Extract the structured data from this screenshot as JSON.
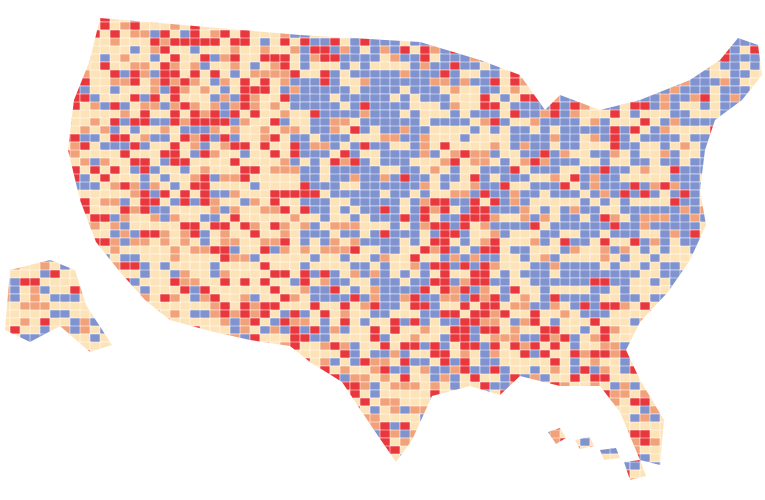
{
  "map": {
    "colors": [
      "#e8383d",
      "#f2a27a",
      "#fde3b8",
      "#8093cf"
    ],
    "background": "#ffffff"
  }
}
